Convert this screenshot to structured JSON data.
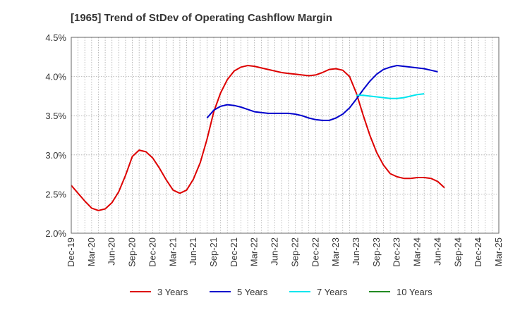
{
  "chart_data": {
    "type": "line",
    "title": "[1965]  Trend of StDev of Operating Cashflow Margin",
    "xlabel": "",
    "ylabel": "",
    "x_labels": [
      "Dec-19",
      "Mar-20",
      "Jun-20",
      "Sep-20",
      "Dec-20",
      "Mar-21",
      "Jun-21",
      "Sep-21",
      "Dec-21",
      "Mar-22",
      "Jun-22",
      "Sep-22",
      "Dec-22",
      "Mar-23",
      "Jun-23",
      "Sep-23",
      "Dec-23",
      "Mar-24",
      "Jun-24",
      "Sep-24",
      "Dec-24",
      "Mar-25"
    ],
    "y_ticks": [
      "2.0%",
      "2.5%",
      "3.0%",
      "3.5%",
      "4.0%",
      "4.5%"
    ],
    "ylim": [
      2.0,
      4.5
    ],
    "grid": true,
    "legend_position": "bottom",
    "series": [
      {
        "name": "3 Years",
        "color": "#dd0000",
        "values": [
          2.61,
          2.51,
          2.41,
          2.32,
          2.29,
          2.31,
          2.39,
          2.53,
          2.74,
          2.98,
          3.06,
          3.04,
          2.96,
          2.83,
          2.68,
          2.55,
          2.51,
          2.55,
          2.69,
          2.9,
          3.2,
          3.55,
          3.79,
          3.96,
          4.07,
          4.12,
          4.14,
          4.13,
          4.11,
          4.09,
          4.07,
          4.05,
          4.04,
          4.03,
          4.02,
          4.01,
          4.02,
          4.05,
          4.09,
          4.1,
          4.08,
          4.0,
          3.79,
          3.51,
          3.25,
          3.03,
          2.87,
          2.76,
          2.72,
          2.7,
          2.7,
          2.71,
          2.71,
          2.7,
          2.66,
          2.58
        ]
      },
      {
        "name": "5 Years",
        "color": "#0000cc",
        "values": [
          null,
          null,
          null,
          null,
          null,
          null,
          null,
          null,
          null,
          null,
          null,
          null,
          null,
          null,
          null,
          null,
          null,
          null,
          null,
          null,
          3.47,
          3.57,
          3.62,
          3.64,
          3.63,
          3.61,
          3.58,
          3.55,
          3.54,
          3.53,
          3.53,
          3.53,
          3.53,
          3.52,
          3.5,
          3.47,
          3.45,
          3.44,
          3.44,
          3.47,
          3.52,
          3.6,
          3.71,
          3.83,
          3.94,
          4.03,
          4.09,
          4.12,
          4.14,
          4.13,
          4.12,
          4.11,
          4.1,
          4.08,
          4.06,
          null
        ]
      },
      {
        "name": "7 Years",
        "color": "#00e5ee",
        "values": [
          null,
          null,
          null,
          null,
          null,
          null,
          null,
          null,
          null,
          null,
          null,
          null,
          null,
          null,
          null,
          null,
          null,
          null,
          null,
          null,
          null,
          null,
          null,
          null,
          null,
          null,
          null,
          null,
          null,
          null,
          null,
          null,
          null,
          null,
          null,
          null,
          null,
          null,
          null,
          null,
          null,
          null,
          3.76,
          3.76,
          3.75,
          3.74,
          3.73,
          3.72,
          3.72,
          3.73,
          3.75,
          3.77,
          3.78,
          null,
          null,
          null
        ]
      },
      {
        "name": "10 Years",
        "color": "#228b22",
        "values": []
      }
    ]
  }
}
